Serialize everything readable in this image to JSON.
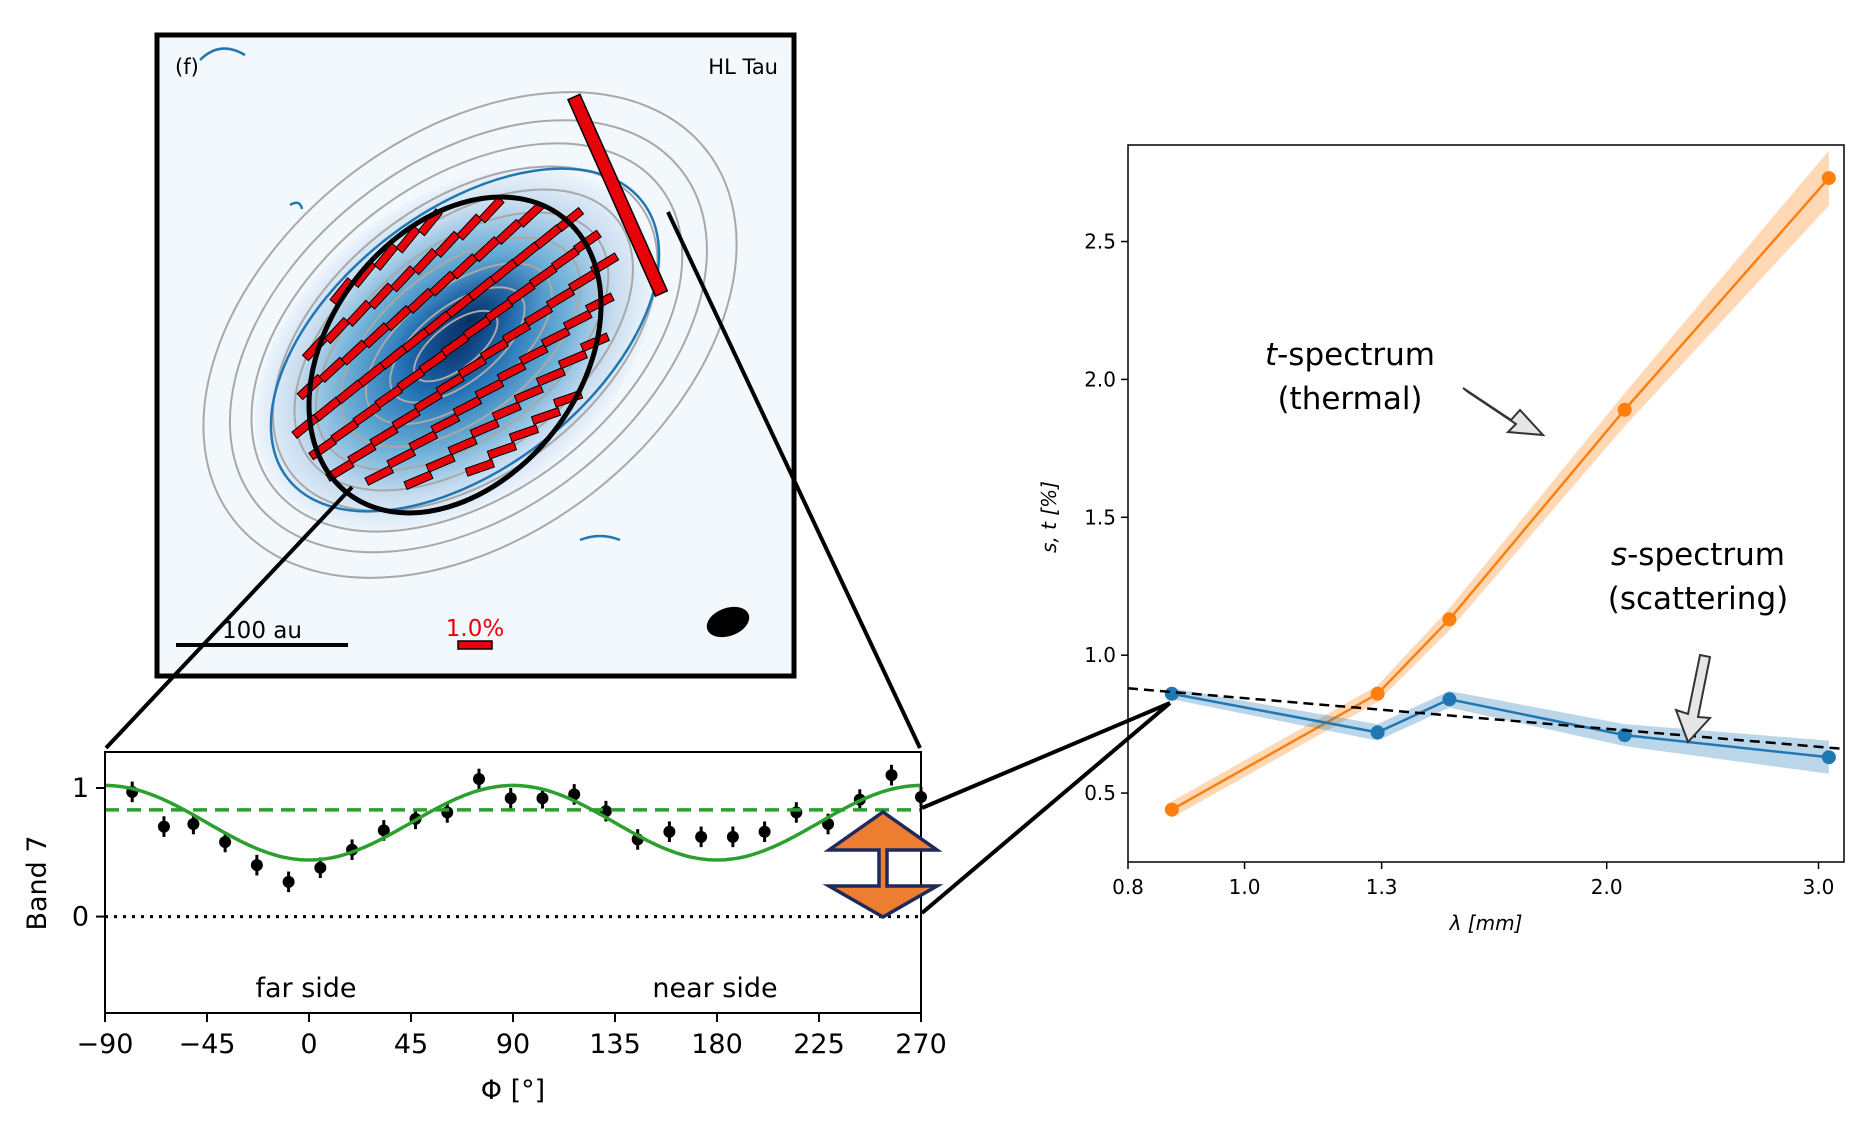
{
  "colors": {
    "blue": "#1f77b4",
    "orange": "#ff7f0e",
    "green": "#2ca02c",
    "red": "#e8000b",
    "black": "#000000",
    "gray": "#aaaaaa",
    "arrow_fill": "#ed7d31",
    "arrow_edge": "#1f2a5c"
  },
  "map_panel": {
    "label": "(f)",
    "source": "HL Tau",
    "scale_bar_label": "100 au",
    "polarization_label": "1.0%"
  },
  "chart_data": [
    {
      "type": "line",
      "id": "band7-azimuthal-profile",
      "xlabel": "Φ [°]",
      "ylabel": "Band 7",
      "xlim": [
        -90,
        270
      ],
      "ylim": [
        -0.75,
        1.28
      ],
      "xticks": [
        -90,
        -45,
        0,
        45,
        90,
        135,
        180,
        225,
        270
      ],
      "xtick_labels": [
        "−90",
        "−45",
        "0",
        "45",
        "90",
        "135",
        "180",
        "225",
        "270"
      ],
      "yticks": [
        0,
        1
      ],
      "ytick_labels": [
        "0",
        "1"
      ],
      "annotations": [
        "far side",
        "near side"
      ],
      "series": [
        {
          "kind": "points_with_errorbars",
          "x": [
            -78,
            -64,
            -51,
            -37,
            -23,
            -9,
            5,
            19,
            33,
            47,
            61,
            75,
            89,
            103,
            117,
            131,
            145,
            159,
            173,
            187,
            201,
            215,
            229,
            243,
            257,
            270
          ],
          "y": [
            0.97,
            0.7,
            0.72,
            0.58,
            0.4,
            0.27,
            0.38,
            0.52,
            0.67,
            0.76,
            0.81,
            1.07,
            0.92,
            0.92,
            0.95,
            0.82,
            0.6,
            0.66,
            0.62,
            0.62,
            0.66,
            0.81,
            0.72,
            0.91,
            1.1,
            0.93
          ],
          "err": 0.08
        },
        {
          "kind": "model_curve",
          "formula": "0.73 + 0.29*cos(2*(Φ-90°))"
        },
        {
          "kind": "horizontal_line",
          "style": "dashed",
          "y": 0.83
        },
        {
          "kind": "horizontal_line",
          "style": "dotted",
          "y": 0
        }
      ]
    },
    {
      "type": "line",
      "id": "polarization-spectrum",
      "xlabel": "λ [mm]",
      "ylabel": "s, t [%]",
      "xscale": "log",
      "xlim": [
        0.8,
        3.15
      ],
      "ylim": [
        0.25,
        2.85
      ],
      "xticks": [
        0.8,
        1.0,
        1.3,
        2.0,
        3.0
      ],
      "xtick_labels": [
        "0.8",
        "1.0",
        "1.3",
        "2.0",
        "3.0"
      ],
      "yticks": [
        0.5,
        1.0,
        1.5,
        2.0,
        2.5
      ],
      "ytick_labels": [
        "0.5",
        "1.0",
        "1.5",
        "2.0",
        "2.5"
      ],
      "series": [
        {
          "name": "t-spectrum (thermal)",
          "x": [
            0.87,
            1.29,
            1.48,
            2.07,
            3.06
          ],
          "y": [
            0.44,
            0.86,
            1.13,
            1.89,
            2.73
          ],
          "band": [
            0.03,
            0.03,
            0.04,
            0.06,
            0.1
          ]
        },
        {
          "name": "s-spectrum (scattering)",
          "x": [
            0.87,
            1.29,
            1.48,
            2.07,
            3.06
          ],
          "y": [
            0.86,
            0.72,
            0.84,
            0.71,
            0.63
          ],
          "band": [
            0.02,
            0.03,
            0.03,
            0.04,
            0.06
          ]
        },
        {
          "name": "trend",
          "style": "dashed",
          "x": [
            0.8,
            3.15
          ],
          "y": [
            0.88,
            0.66
          ]
        }
      ],
      "annotations": [
        {
          "italic": "t",
          "text": "-spectrum",
          "sub": "(thermal)"
        },
        {
          "italic": "s",
          "text": "-spectrum",
          "sub": "(scattering)"
        }
      ]
    }
  ]
}
